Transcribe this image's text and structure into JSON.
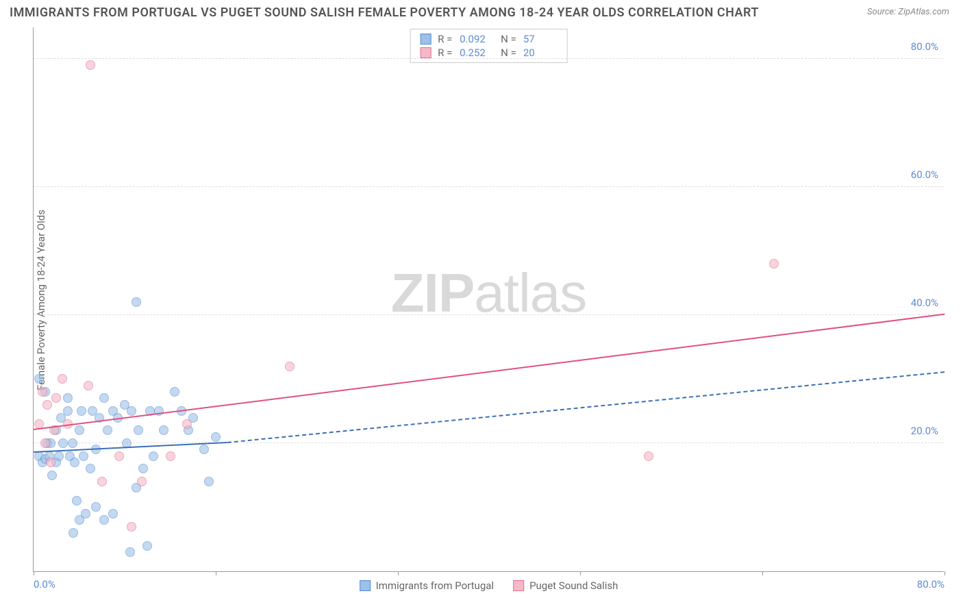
{
  "title": "IMMIGRANTS FROM PORTUGAL VS PUGET SOUND SALISH FEMALE POVERTY AMONG 18-24 YEAR OLDS CORRELATION CHART",
  "source": "Source: ZipAtlas.com",
  "y_label": "Female Poverty Among 18-24 Year Olds",
  "watermark": {
    "bold": "ZIP",
    "rest": "atlas"
  },
  "chart": {
    "type": "scatter",
    "background_color": "#ffffff",
    "grid_color": "#dddddd",
    "axis_color": "#999999",
    "tick_label_color": "#5b8bd4",
    "tick_fontsize": 15,
    "title_color": "#555555",
    "title_fontsize": 18,
    "xlim": [
      0,
      80
    ],
    "ylim": [
      0,
      85
    ],
    "x_ticks": [
      0,
      16,
      32,
      48,
      64,
      80
    ],
    "x_tick_labels_shown": {
      "0": "0.0%",
      "80": "80.0%"
    },
    "y_ticks": [
      20,
      40,
      60,
      80
    ],
    "y_tick_labels": [
      "20.0%",
      "40.0%",
      "60.0%",
      "80.0%"
    ],
    "marker_radius": 7,
    "marker_border_width": 1,
    "trend_line_width_solid": 2.5,
    "trend_line_dash": "6,5"
  },
  "series": [
    {
      "name": "Immigrants from Portugal",
      "fill_color": "#9cc0e7",
      "border_color": "#5b8bd4",
      "fill_opacity": 0.6,
      "R": "0.092",
      "N": "57",
      "trend": {
        "color": "#3b6fb5",
        "solid_from": [
          0,
          18.5
        ],
        "solid_to": [
          17,
          20
        ],
        "dash_from": [
          17,
          20
        ],
        "dash_to": [
          80,
          31
        ]
      },
      "points": [
        [
          0.5,
          18
        ],
        [
          0.8,
          17
        ],
        [
          1.0,
          17.5
        ],
        [
          1.2,
          20
        ],
        [
          1.0,
          28
        ],
        [
          0.5,
          30
        ],
        [
          1.4,
          18
        ],
        [
          1.6,
          15
        ],
        [
          1.5,
          20
        ],
        [
          2.0,
          22
        ],
        [
          2.0,
          17
        ],
        [
          2.4,
          24
        ],
        [
          2.2,
          18
        ],
        [
          2.6,
          20
        ],
        [
          3.0,
          25
        ],
        [
          3.2,
          18
        ],
        [
          3.4,
          20
        ],
        [
          3.0,
          27
        ],
        [
          3.6,
          17
        ],
        [
          4.0,
          22
        ],
        [
          4.2,
          25
        ],
        [
          4.4,
          18
        ],
        [
          5.0,
          16
        ],
        [
          5.2,
          25
        ],
        [
          5.5,
          19
        ],
        [
          5.8,
          24
        ],
        [
          6.2,
          27
        ],
        [
          6.5,
          22
        ],
        [
          7.0,
          25
        ],
        [
          7.4,
          24
        ],
        [
          8.0,
          26
        ],
        [
          8.2,
          20
        ],
        [
          8.6,
          25
        ],
        [
          9.0,
          13
        ],
        [
          9.2,
          22
        ],
        [
          9.6,
          16
        ],
        [
          10.2,
          25
        ],
        [
          10.5,
          18
        ],
        [
          11.0,
          25
        ],
        [
          11.4,
          22
        ],
        [
          12.4,
          28
        ],
        [
          13.0,
          25
        ],
        [
          13.6,
          22
        ],
        [
          14.0,
          24
        ],
        [
          15.0,
          19
        ],
        [
          15.4,
          14
        ],
        [
          16.0,
          21
        ],
        [
          9.0,
          42
        ],
        [
          5.5,
          10
        ],
        [
          6.2,
          8
        ],
        [
          4.0,
          8
        ],
        [
          4.6,
          9
        ],
        [
          3.5,
          6
        ],
        [
          3.8,
          11
        ],
        [
          7.0,
          9
        ],
        [
          8.5,
          3
        ],
        [
          10.0,
          4
        ]
      ]
    },
    {
      "name": "Puget Sound Salish",
      "fill_color": "#f4b8c6",
      "border_color": "#e36f91",
      "fill_opacity": 0.6,
      "R": "0.252",
      "N": "20",
      "trend": {
        "color": "#e05080",
        "solid_from": [
          0,
          22
        ],
        "solid_to": [
          80,
          40
        ]
      },
      "points": [
        [
          0.5,
          23
        ],
        [
          0.8,
          28
        ],
        [
          1.0,
          20
        ],
        [
          1.2,
          26
        ],
        [
          1.5,
          17
        ],
        [
          1.8,
          22
        ],
        [
          2.0,
          27
        ],
        [
          2.5,
          30
        ],
        [
          3.0,
          23
        ],
        [
          5.0,
          79
        ],
        [
          12.0,
          18
        ],
        [
          4.8,
          29
        ],
        [
          7.5,
          18
        ],
        [
          8.6,
          7
        ],
        [
          13.5,
          23
        ],
        [
          22.5,
          32
        ],
        [
          54.0,
          18
        ],
        [
          65.0,
          48
        ],
        [
          6.0,
          14
        ],
        [
          9.5,
          14
        ]
      ]
    }
  ],
  "bottom_legend": [
    {
      "label": "Immigrants from Portugal",
      "fill": "#9cc0e7",
      "border": "#5b8bd4"
    },
    {
      "label": "Puget Sound Salish",
      "fill": "#f4b8c6",
      "border": "#e36f91"
    }
  ]
}
